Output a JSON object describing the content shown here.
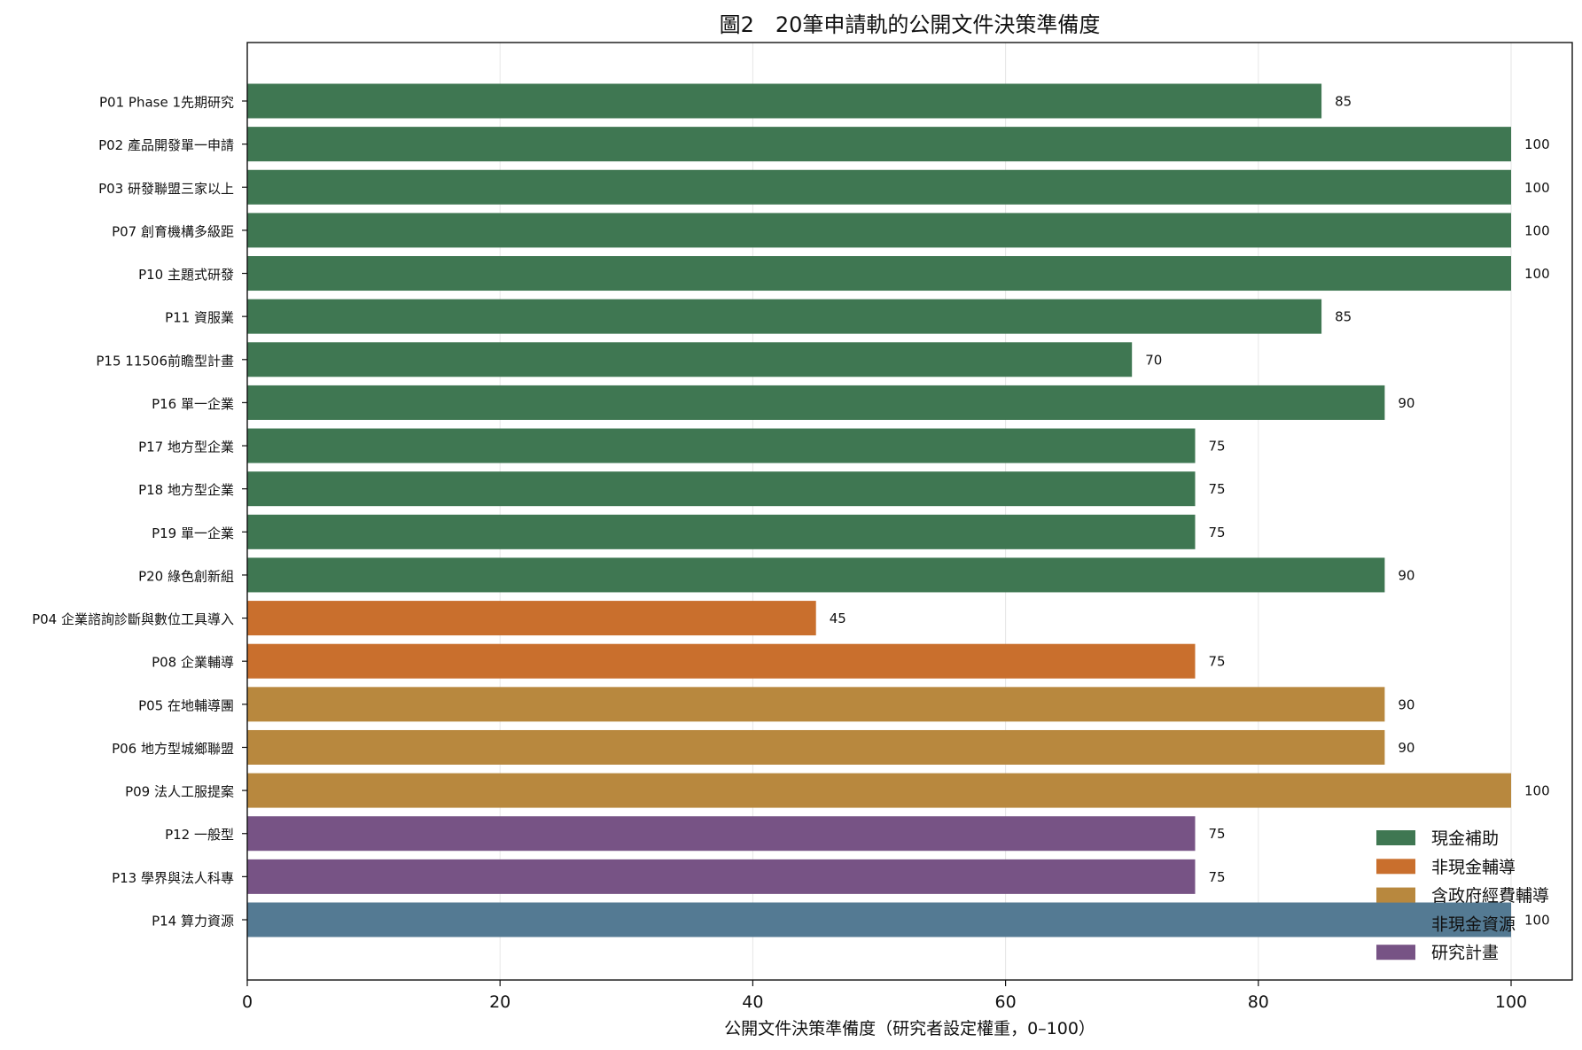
{
  "chart_data": {
    "type": "bar",
    "orientation": "horizontal",
    "title": "圖2　20筆申請軌的公開文件決策準備度",
    "xlabel": "公開文件決策準備度（研究者設定權重，0–100）",
    "ylabel": "",
    "xlim": [
      0,
      105
    ],
    "xticks": [
      0,
      20,
      40,
      60,
      80,
      100
    ],
    "grid": "vertical",
    "legend_position": "bottom-right",
    "categories": [
      "P01 Phase 1先期研究",
      "P02 產品開發單一申請",
      "P03 研發聯盟三家以上",
      "P07 創育機構多級距",
      "P10 主題式研發",
      "P11 資服業",
      "P15 11506前瞻型計畫",
      "P16 單一企業",
      "P17 地方型企業",
      "P18 地方型企業",
      "P19 單一企業",
      "P20 綠色創新組",
      "P04 企業諮詢診斷與數位工具導入",
      "P08 企業輔導",
      "P05 在地輔導團",
      "P06 地方型城鄉聯盟",
      "P09 法人工服提案",
      "P12 一般型",
      "P13 學界與法人科專",
      "P14 算力資源"
    ],
    "values": [
      85,
      100,
      100,
      100,
      100,
      85,
      70,
      90,
      75,
      75,
      75,
      90,
      45,
      75,
      90,
      90,
      100,
      75,
      75,
      100
    ],
    "groups": [
      0,
      0,
      0,
      0,
      0,
      0,
      0,
      0,
      0,
      0,
      0,
      0,
      1,
      1,
      2,
      2,
      2,
      4,
      4,
      3
    ],
    "series": [
      {
        "name": "現金補助",
        "color": "#3f7752"
      },
      {
        "name": "非現金輔導",
        "color": "#c96f2d"
      },
      {
        "name": "含政府經費輔導",
        "color": "#b8883e"
      },
      {
        "name": "非現金資源",
        "color": "#547a93"
      },
      {
        "name": "研究計畫",
        "color": "#775385"
      }
    ],
    "legend": [
      {
        "label": "現金補助",
        "color": "#3f7752"
      },
      {
        "label": "非現金輔導",
        "color": "#c96f2d"
      },
      {
        "label": "含政府經費輔導",
        "color": "#b8883e"
      },
      {
        "label": "非現金資源",
        "color": ""
      },
      {
        "label": "研究計畫",
        "color": "#775385"
      }
    ]
  }
}
